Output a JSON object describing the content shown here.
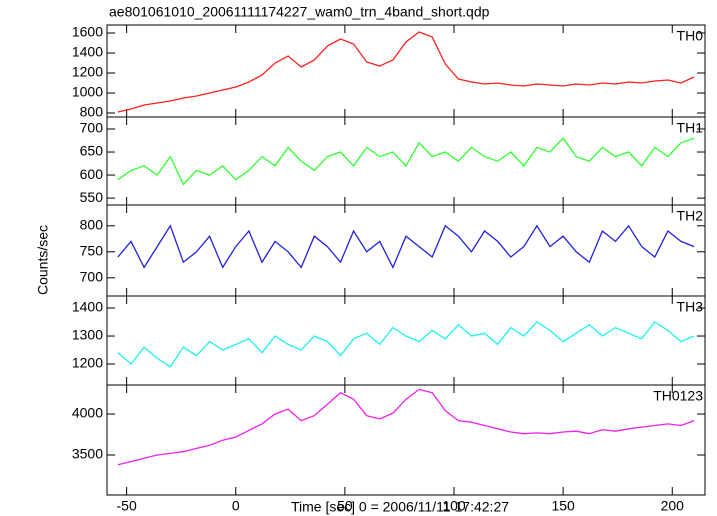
{
  "title": "ae801061010_20061111174227_wam0_trn_4band_short.qdp",
  "ylabel": "Counts/sec",
  "xlabel": "Time [sec] 0 = 2006/11/11 17:42:27",
  "chart_data": [
    {
      "type": "line",
      "label": "TH0",
      "color": "#ff2020",
      "x": [
        -54,
        -48,
        -42,
        -36,
        -30,
        -24,
        -18,
        -12,
        -6,
        0,
        6,
        12,
        18,
        24,
        30,
        36,
        42,
        48,
        54,
        60,
        66,
        72,
        78,
        84,
        90,
        96,
        102,
        108,
        114,
        120,
        126,
        132,
        138,
        144,
        150,
        156,
        162,
        168,
        174,
        180,
        186,
        192,
        198,
        204,
        210
      ],
      "values": [
        810,
        840,
        880,
        900,
        920,
        950,
        970,
        1000,
        1030,
        1060,
        1110,
        1180,
        1300,
        1370,
        1260,
        1330,
        1470,
        1540,
        1490,
        1310,
        1270,
        1330,
        1510,
        1610,
        1560,
        1290,
        1140,
        1110,
        1090,
        1100,
        1080,
        1070,
        1090,
        1080,
        1070,
        1090,
        1080,
        1100,
        1090,
        1110,
        1100,
        1120,
        1130,
        1100,
        1160
      ],
      "xlim": [
        -59,
        215
      ],
      "ylim": [
        760,
        1680
      ],
      "yticks": [
        800,
        1000,
        1200,
        1400,
        1600
      ]
    },
    {
      "type": "line",
      "label": "TH1",
      "color": "#30ff30",
      "x": [
        -54,
        -48,
        -42,
        -36,
        -30,
        -24,
        -18,
        -12,
        -6,
        0,
        6,
        12,
        18,
        24,
        30,
        36,
        42,
        48,
        54,
        60,
        66,
        72,
        78,
        84,
        90,
        96,
        102,
        108,
        114,
        120,
        126,
        132,
        138,
        144,
        150,
        156,
        162,
        168,
        174,
        180,
        186,
        192,
        198,
        204,
        210
      ],
      "values": [
        590,
        610,
        620,
        600,
        640,
        580,
        610,
        600,
        620,
        590,
        610,
        640,
        620,
        660,
        630,
        610,
        640,
        650,
        620,
        660,
        640,
        650,
        620,
        670,
        640,
        650,
        630,
        660,
        640,
        630,
        650,
        620,
        660,
        650,
        680,
        640,
        630,
        660,
        640,
        650,
        620,
        660,
        640,
        670,
        680
      ],
      "xlim": [
        -59,
        215
      ],
      "ylim": [
        535,
        726
      ],
      "yticks": [
        550,
        600,
        650,
        700
      ]
    },
    {
      "type": "line",
      "label": "TH2",
      "color": "#2020e0",
      "x": [
        -54,
        -48,
        -42,
        -36,
        -30,
        -24,
        -18,
        -12,
        -6,
        0,
        6,
        12,
        18,
        24,
        30,
        36,
        42,
        48,
        54,
        60,
        66,
        72,
        78,
        84,
        90,
        96,
        102,
        108,
        114,
        120,
        126,
        132,
        138,
        144,
        150,
        156,
        162,
        168,
        174,
        180,
        186,
        192,
        198,
        204,
        210
      ],
      "values": [
        740,
        770,
        720,
        760,
        800,
        730,
        750,
        780,
        720,
        760,
        790,
        730,
        770,
        750,
        720,
        780,
        760,
        730,
        790,
        750,
        770,
        720,
        780,
        760,
        740,
        800,
        780,
        750,
        790,
        770,
        740,
        760,
        800,
        760,
        780,
        750,
        730,
        790,
        770,
        800,
        760,
        740,
        790,
        770,
        760
      ],
      "xlim": [
        -59,
        215
      ],
      "ylim": [
        665,
        840
      ],
      "yticks": [
        700,
        750,
        800
      ]
    },
    {
      "type": "line",
      "label": "TH3",
      "color": "#20f0f0",
      "x": [
        -54,
        -48,
        -42,
        -36,
        -30,
        -24,
        -18,
        -12,
        -6,
        0,
        6,
        12,
        18,
        24,
        30,
        36,
        42,
        48,
        54,
        60,
        66,
        72,
        78,
        84,
        90,
        96,
        102,
        108,
        114,
        120,
        126,
        132,
        138,
        144,
        150,
        156,
        162,
        168,
        174,
        180,
        186,
        192,
        198,
        204,
        210
      ],
      "values": [
        1240,
        1200,
        1260,
        1220,
        1190,
        1260,
        1230,
        1280,
        1250,
        1270,
        1290,
        1240,
        1300,
        1270,
        1250,
        1300,
        1280,
        1230,
        1290,
        1310,
        1270,
        1330,
        1300,
        1280,
        1320,
        1290,
        1340,
        1300,
        1310,
        1270,
        1330,
        1300,
        1350,
        1320,
        1280,
        1310,
        1340,
        1300,
        1330,
        1310,
        1290,
        1350,
        1320,
        1280,
        1300
      ],
      "xlim": [
        -59,
        215
      ],
      "ylim": [
        1125,
        1443
      ],
      "yticks": [
        1200,
        1300,
        1400
      ]
    },
    {
      "type": "line",
      "label": "TH0123",
      "color": "#f020f0",
      "x": [
        -54,
        -48,
        -42,
        -36,
        -30,
        -24,
        -18,
        -12,
        -6,
        0,
        6,
        12,
        18,
        24,
        30,
        36,
        42,
        48,
        54,
        60,
        66,
        72,
        78,
        84,
        90,
        96,
        102,
        108,
        114,
        120,
        126,
        132,
        138,
        144,
        150,
        156,
        162,
        168,
        174,
        180,
        186,
        192,
        198,
        204,
        210
      ],
      "values": [
        3380,
        3420,
        3460,
        3500,
        3520,
        3540,
        3580,
        3620,
        3680,
        3720,
        3800,
        3880,
        4000,
        4060,
        3920,
        3980,
        4120,
        4260,
        4180,
        3980,
        3940,
        4010,
        4180,
        4300,
        4260,
        4040,
        3920,
        3900,
        3860,
        3820,
        3780,
        3760,
        3770,
        3760,
        3780,
        3790,
        3760,
        3810,
        3790,
        3820,
        3840,
        3860,
        3880,
        3860,
        3920
      ],
      "xlim": [
        -59,
        215
      ],
      "ylim": [
        3012,
        4354
      ],
      "yticks": [
        3500,
        4000
      ],
      "xticks": [
        -50,
        0,
        50,
        100,
        150,
        200
      ]
    }
  ]
}
